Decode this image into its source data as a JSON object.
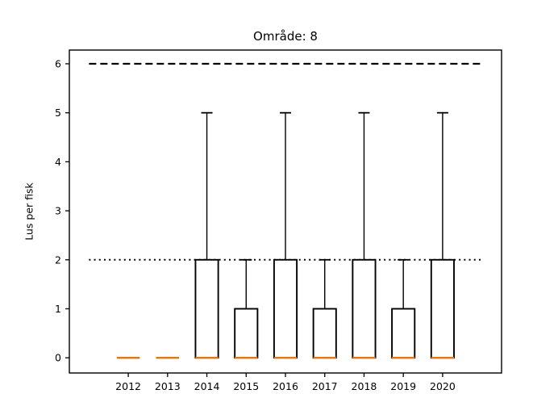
{
  "chart_data": {
    "type": "boxplot",
    "title": "Område: 8",
    "xlabel": "",
    "ylabel": "Lus per fisk",
    "categories": [
      "2012",
      "2013",
      "2014",
      "2015",
      "2016",
      "2017",
      "2018",
      "2019",
      "2020"
    ],
    "positions": [
      1,
      2,
      3,
      4,
      5,
      6,
      7,
      8,
      9
    ],
    "boxes": [
      {
        "label": "2012",
        "whislo": 0,
        "q1": 0,
        "med": 0,
        "q3": 0,
        "whishi": 0
      },
      {
        "label": "2013",
        "whislo": 0,
        "q1": 0,
        "med": 0,
        "q3": 0,
        "whishi": 0
      },
      {
        "label": "2014",
        "whislo": 0,
        "q1": 0,
        "med": 0,
        "q3": 2,
        "whishi": 5
      },
      {
        "label": "2015",
        "whislo": 0,
        "q1": 0,
        "med": 0,
        "q3": 1,
        "whishi": 2
      },
      {
        "label": "2016",
        "whislo": 0,
        "q1": 0,
        "med": 0,
        "q3": 2,
        "whishi": 5
      },
      {
        "label": "2017",
        "whislo": 0,
        "q1": 0,
        "med": 0,
        "q3": 1,
        "whishi": 2
      },
      {
        "label": "2018",
        "whislo": 0,
        "q1": 0,
        "med": 0,
        "q3": 2,
        "whishi": 5
      },
      {
        "label": "2019",
        "whislo": 0,
        "q1": 0,
        "med": 0,
        "q3": 1,
        "whishi": 2
      },
      {
        "label": "2020",
        "whislo": 0,
        "q1": 0,
        "med": 0,
        "q3": 2,
        "whishi": 5
      }
    ],
    "reference_lines": [
      {
        "y": 6,
        "style": "dashed",
        "x_start": 0,
        "x_end": 10,
        "color": "#000000"
      },
      {
        "y": 2,
        "style": "dotted",
        "x_start": 0,
        "x_end": 10,
        "color": "#000000"
      }
    ],
    "yticks": [
      0,
      1,
      2,
      3,
      4,
      5,
      6
    ],
    "ylim": [
      -0.31,
      6.28
    ],
    "xlim": [
      -0.5,
      10.5
    ],
    "grid": false,
    "legend": null,
    "colors": {
      "box_edge": "#000000",
      "box_fill": "#ffffff",
      "median": "#e8780e",
      "axis": "#000000",
      "background": "#ffffff"
    }
  }
}
